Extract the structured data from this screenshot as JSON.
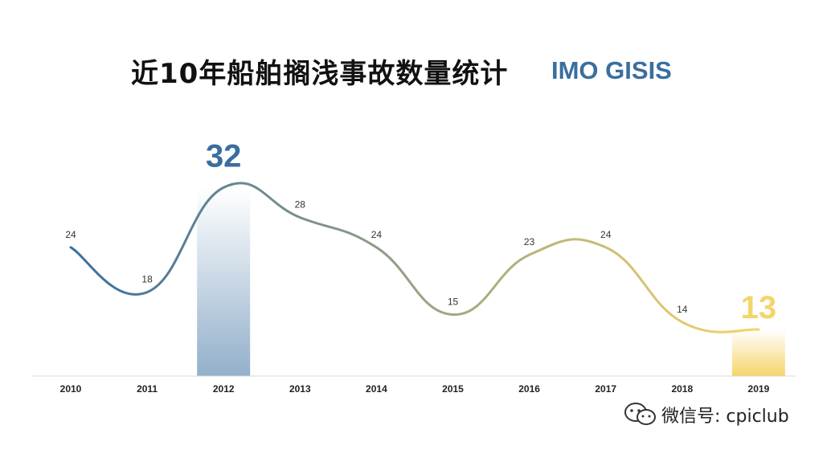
{
  "title": "近10年船舶搁浅事故数量统计",
  "source": "IMO GISIS",
  "colors": {
    "start": "#3a6e9f",
    "end": "#f5d56a",
    "title": "#111111",
    "source": "#3a6e9f",
    "highlight_max": "#3a6e9f",
    "highlight_min": "#f5d56a"
  },
  "chart_data": {
    "type": "line",
    "title": "近10年船舶搁浅事故数量统计",
    "xlabel": "",
    "ylabel": "",
    "categories": [
      "2010",
      "2011",
      "2012",
      "2013",
      "2014",
      "2015",
      "2016",
      "2017",
      "2018",
      "2019"
    ],
    "values": [
      24,
      18,
      32,
      28,
      24,
      15,
      23,
      24,
      14,
      13
    ],
    "highlights": [
      {
        "category": "2012",
        "value": 32,
        "label": "32"
      },
      {
        "category": "2019",
        "value": 13,
        "label": "13"
      }
    ],
    "grid": false,
    "smooth": true
  },
  "watermark": {
    "text": "微信号: cpiclub",
    "icon": "wechat-icon"
  }
}
